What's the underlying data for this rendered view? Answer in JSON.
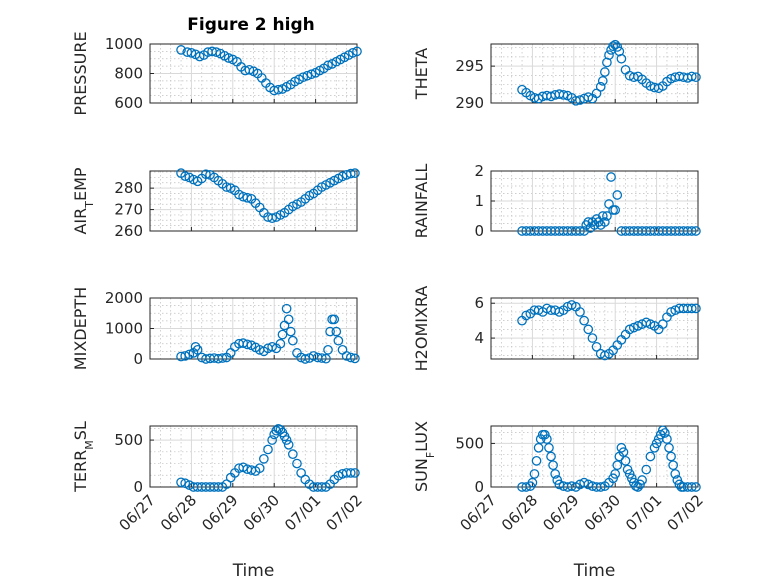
{
  "figure": {
    "title": "Figure 2 high"
  },
  "colors": {
    "marker": "#0072bd",
    "axis": "#262626",
    "grid": "#d9d9d9"
  },
  "shared_x": {
    "label": "Time",
    "ticks": [
      "06/27",
      "06/28",
      "06/29",
      "06/30",
      "07/01",
      "07/02"
    ],
    "tick_values": [
      0,
      1,
      2,
      3,
      4,
      5
    ],
    "range": [
      0,
      5
    ]
  },
  "chart_data": [
    {
      "type": "scatter",
      "ylabel": "PRESSURE",
      "ylim": [
        600,
        1000
      ],
      "yticks": [
        600,
        800,
        1000
      ],
      "x": [
        0.75,
        0.9,
        1.0,
        1.1,
        1.2,
        1.3,
        1.4,
        1.5,
        1.6,
        1.7,
        1.8,
        1.9,
        2.0,
        2.1,
        2.2,
        2.3,
        2.4,
        2.5,
        2.6,
        2.7,
        2.8,
        2.9,
        3.0,
        3.1,
        3.2,
        3.3,
        3.4,
        3.5,
        3.6,
        3.7,
        3.8,
        3.9,
        4.0,
        4.1,
        4.2,
        4.3,
        4.4,
        4.5,
        4.6,
        4.7,
        4.8,
        4.9,
        5.0
      ],
      "y": [
        960,
        945,
        940,
        930,
        915,
        925,
        945,
        950,
        945,
        935,
        920,
        905,
        895,
        880,
        845,
        820,
        825,
        815,
        800,
        770,
        735,
        705,
        685,
        690,
        695,
        710,
        725,
        745,
        760,
        775,
        785,
        795,
        805,
        820,
        835,
        855,
        865,
        880,
        895,
        910,
        925,
        940,
        950
      ]
    },
    {
      "type": "scatter",
      "ylabel": "THETA",
      "ylim": [
        290,
        298
      ],
      "yticks": [
        290,
        295
      ],
      "x": [
        0.75,
        0.85,
        0.95,
        1.05,
        1.15,
        1.25,
        1.35,
        1.45,
        1.55,
        1.65,
        1.75,
        1.85,
        1.95,
        2.05,
        2.15,
        2.25,
        2.35,
        2.45,
        2.55,
        2.65,
        2.7,
        2.75,
        2.8,
        2.85,
        2.9,
        2.95,
        3.0,
        3.05,
        3.1,
        3.15,
        3.25,
        3.35,
        3.45,
        3.55,
        3.65,
        3.75,
        3.85,
        3.95,
        4.05,
        4.15,
        4.25,
        4.35,
        4.45,
        4.55,
        4.65,
        4.75,
        4.85,
        4.95
      ],
      "y": [
        291.8,
        291.4,
        291.0,
        290.7,
        290.6,
        290.9,
        291.0,
        290.9,
        291.1,
        291.2,
        291.1,
        291.0,
        290.7,
        290.3,
        290.4,
        290.6,
        290.8,
        290.6,
        291.3,
        292.2,
        293.0,
        294.2,
        295.5,
        296.5,
        297.2,
        297.7,
        297.9,
        297.6,
        297.0,
        296.0,
        294.5,
        293.7,
        293.5,
        293.6,
        293.2,
        292.7,
        292.3,
        292.1,
        292.0,
        292.3,
        292.9,
        293.3,
        293.5,
        293.6,
        293.5,
        293.4,
        293.6,
        293.5
      ]
    },
    {
      "type": "scatter",
      "ylabel": "AIR",
      "ylabel_sub": "T",
      "ylabel_rest": "EMP",
      "ylim": [
        260,
        288
      ],
      "yticks": [
        260,
        270,
        280
      ],
      "x": [
        0.75,
        0.85,
        0.95,
        1.05,
        1.15,
        1.25,
        1.35,
        1.45,
        1.55,
        1.65,
        1.75,
        1.85,
        1.95,
        2.05,
        2.15,
        2.25,
        2.35,
        2.45,
        2.55,
        2.65,
        2.75,
        2.85,
        2.95,
        3.05,
        3.15,
        3.25,
        3.35,
        3.45,
        3.55,
        3.65,
        3.75,
        3.85,
        3.95,
        4.05,
        4.15,
        4.25,
        4.35,
        4.45,
        4.55,
        4.65,
        4.75,
        4.85,
        4.95
      ],
      "y": [
        287,
        285.6,
        285,
        284,
        283.2,
        284.5,
        286.5,
        286.2,
        285,
        283.5,
        282,
        280.5,
        280,
        279,
        277,
        276,
        275.5,
        275,
        273,
        271,
        268.5,
        266.5,
        266,
        266.5,
        267.5,
        268.5,
        270,
        271.5,
        272.5,
        273.5,
        275,
        276.5,
        277.5,
        279,
        280.5,
        281.5,
        282.5,
        283.5,
        284.5,
        285.5,
        286.2,
        286.8,
        287
      ]
    },
    {
      "type": "scatter",
      "ylabel": "RAINFALL",
      "ylim": [
        0,
        2
      ],
      "yticks": [
        0,
        1,
        2
      ],
      "x": [
        0.75,
        0.85,
        0.95,
        1.05,
        1.15,
        1.25,
        1.35,
        1.45,
        1.55,
        1.65,
        1.75,
        1.85,
        1.95,
        2.05,
        2.15,
        2.25,
        2.3,
        2.35,
        2.4,
        2.45,
        2.5,
        2.55,
        2.6,
        2.65,
        2.7,
        2.75,
        2.8,
        2.85,
        2.9,
        2.95,
        3.0,
        3.05,
        3.15,
        3.25,
        3.35,
        3.45,
        3.55,
        3.65,
        3.75,
        3.85,
        3.95,
        4.05,
        4.15,
        4.25,
        4.35,
        4.45,
        4.55,
        4.65,
        4.75,
        4.85,
        4.95
      ],
      "y": [
        0,
        0,
        0,
        0,
        0,
        0,
        0,
        0,
        0,
        0,
        0,
        0,
        0,
        0,
        0,
        0,
        0.2,
        0.3,
        0.1,
        0.3,
        0.2,
        0.4,
        0.3,
        0.2,
        0.5,
        0.3,
        0.5,
        0.9,
        1.8,
        0.7,
        0.7,
        1.2,
        0,
        0,
        0,
        0,
        0,
        0,
        0,
        0,
        0,
        0,
        0,
        0,
        0,
        0,
        0,
        0,
        0,
        0,
        0
      ]
    },
    {
      "type": "scatter",
      "ylabel": "MIXDEPTH",
      "ylim": [
        0,
        2000
      ],
      "yticks": [
        0,
        1000,
        2000
      ],
      "x": [
        0.75,
        0.85,
        0.95,
        1.05,
        1.1,
        1.15,
        1.25,
        1.35,
        1.45,
        1.55,
        1.65,
        1.75,
        1.85,
        1.95,
        2.05,
        2.15,
        2.25,
        2.35,
        2.45,
        2.55,
        2.65,
        2.75,
        2.85,
        2.95,
        3.05,
        3.15,
        3.2,
        3.25,
        3.3,
        3.35,
        3.4,
        3.45,
        3.55,
        3.65,
        3.75,
        3.85,
        3.95,
        4.05,
        4.15,
        4.25,
        4.3,
        4.35,
        4.4,
        4.45,
        4.5,
        4.55,
        4.65,
        4.75,
        4.85,
        4.95
      ],
      "y": [
        80,
        100,
        150,
        200,
        400,
        300,
        50,
        0,
        20,
        30,
        10,
        30,
        50,
        200,
        400,
        500,
        520,
        480,
        450,
        380,
        300,
        250,
        350,
        400,
        350,
        500,
        800,
        1100,
        1650,
        1300,
        900,
        600,
        200,
        50,
        0,
        30,
        100,
        50,
        30,
        10,
        300,
        900,
        1300,
        1300,
        900,
        600,
        300,
        100,
        50,
        20
      ]
    },
    {
      "type": "scatter",
      "ylabel": "H2OMIXRA",
      "ylim": [
        2.8,
        6.3
      ],
      "yticks": [
        4,
        6
      ],
      "x": [
        0.75,
        0.85,
        0.95,
        1.05,
        1.15,
        1.25,
        1.35,
        1.45,
        1.55,
        1.65,
        1.75,
        1.85,
        1.95,
        2.05,
        2.15,
        2.25,
        2.35,
        2.45,
        2.55,
        2.65,
        2.75,
        2.85,
        2.95,
        3.05,
        3.15,
        3.25,
        3.35,
        3.45,
        3.55,
        3.65,
        3.75,
        3.85,
        3.95,
        4.05,
        4.15,
        4.25,
        4.35,
        4.45,
        4.55,
        4.65,
        4.75,
        4.85,
        4.95
      ],
      "y": [
        5.0,
        5.3,
        5.4,
        5.6,
        5.6,
        5.5,
        5.7,
        5.6,
        5.6,
        5.5,
        5.6,
        5.8,
        5.9,
        5.8,
        5.5,
        5.0,
        4.5,
        4.0,
        3.5,
        3.1,
        3.0,
        3.1,
        3.3,
        3.6,
        3.9,
        4.2,
        4.5,
        4.6,
        4.7,
        4.8,
        4.9,
        4.8,
        4.7,
        4.5,
        4.8,
        5.2,
        5.5,
        5.6,
        5.7,
        5.7,
        5.7,
        5.7,
        5.7
      ]
    },
    {
      "type": "scatter",
      "ylabel": "TERR",
      "ylabel_sub": "M",
      "ylabel_rest": "SL",
      "ylim": [
        0,
        650
      ],
      "yticks": [
        0,
        500
      ],
      "x": [
        0.75,
        0.85,
        0.95,
        1.05,
        1.15,
        1.25,
        1.35,
        1.45,
        1.55,
        1.65,
        1.75,
        1.85,
        1.95,
        2.05,
        2.15,
        2.25,
        2.35,
        2.45,
        2.55,
        2.65,
        2.75,
        2.85,
        2.95,
        3.0,
        3.05,
        3.1,
        3.15,
        3.2,
        3.25,
        3.3,
        3.35,
        3.45,
        3.55,
        3.65,
        3.75,
        3.85,
        3.95,
        4.05,
        4.15,
        4.25,
        4.35,
        4.45,
        4.55,
        4.65,
        4.75,
        4.85,
        4.95
      ],
      "y": [
        50,
        40,
        20,
        0,
        0,
        0,
        0,
        0,
        0,
        0,
        0,
        30,
        100,
        150,
        200,
        210,
        190,
        180,
        170,
        200,
        300,
        400,
        500,
        560,
        600,
        620,
        610,
        580,
        540,
        500,
        450,
        350,
        250,
        150,
        80,
        30,
        0,
        0,
        0,
        0,
        30,
        80,
        120,
        140,
        150,
        150,
        150
      ]
    },
    {
      "type": "scatter",
      "ylabel": "SUN",
      "ylabel_sub": "F",
      "ylabel_rest": "LUX",
      "ylim": [
        0,
        700
      ],
      "yticks": [
        0,
        500
      ],
      "x": [
        0.75,
        0.85,
        0.95,
        1.0,
        1.05,
        1.1,
        1.15,
        1.2,
        1.25,
        1.3,
        1.35,
        1.4,
        1.45,
        1.5,
        1.55,
        1.6,
        1.65,
        1.75,
        1.85,
        1.95,
        2.05,
        2.15,
        2.25,
        2.35,
        2.45,
        2.55,
        2.65,
        2.75,
        2.85,
        2.95,
        3.0,
        3.05,
        3.1,
        3.15,
        3.2,
        3.25,
        3.3,
        3.35,
        3.4,
        3.45,
        3.5,
        3.55,
        3.6,
        3.65,
        3.75,
        3.85,
        3.95,
        4.0,
        4.05,
        4.1,
        4.15,
        4.2,
        4.25,
        4.3,
        4.35,
        4.4,
        4.45,
        4.5,
        4.55,
        4.6,
        4.65,
        4.75,
        4.85,
        4.95
      ],
      "y": [
        0,
        0,
        10,
        50,
        150,
        300,
        450,
        550,
        600,
        600,
        550,
        450,
        350,
        250,
        150,
        80,
        30,
        10,
        0,
        10,
        0,
        30,
        50,
        30,
        10,
        0,
        0,
        10,
        50,
        100,
        150,
        250,
        350,
        450,
        400,
        300,
        200,
        150,
        100,
        50,
        10,
        0,
        30,
        80,
        200,
        350,
        450,
        500,
        550,
        600,
        650,
        620,
        550,
        450,
        350,
        250,
        150,
        80,
        30,
        0,
        0,
        0,
        0,
        0
      ]
    }
  ]
}
